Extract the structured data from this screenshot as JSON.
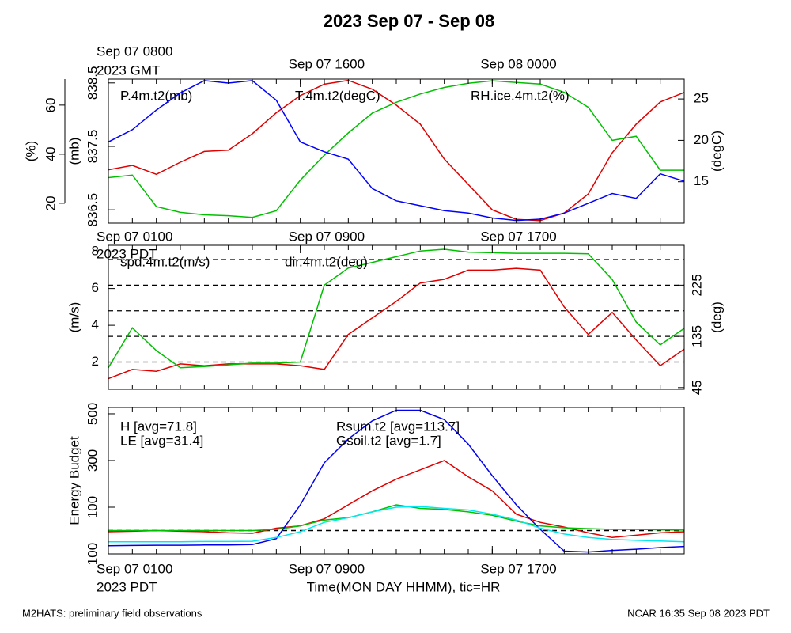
{
  "title": "2023 Sep 07 - Sep 08",
  "footer_left": "M2HATS: preliminary field observations",
  "footer_right": "NCAR 16:35 Sep 08 2023 PDT",
  "chart_data": [
    {
      "type": "line",
      "x": [
        0,
        1,
        2,
        3,
        4,
        5,
        6,
        7,
        8,
        9,
        10,
        11,
        12,
        13,
        14,
        15,
        16,
        17,
        18,
        19,
        20,
        21,
        22,
        23,
        24
      ],
      "xlim": [
        0,
        24
      ],
      "xminorticks": [
        0,
        1,
        2,
        3,
        4,
        5,
        6,
        7,
        8,
        9,
        10,
        11,
        12,
        13,
        14,
        15,
        16,
        17,
        18,
        19,
        20,
        21,
        22,
        23,
        24
      ],
      "x2ticks": [
        {
          "value": 0,
          "label": "Sep 07 0800"
        },
        {
          "value": 8,
          "label": "Sep 07 1600"
        },
        {
          "value": 16,
          "label": "Sep 08 0000"
        }
      ],
      "x2_year": "2023 GMT",
      "ylabel": "(mb)",
      "ylim": [
        836.29,
        838.56
      ],
      "yticks": [
        836.5,
        837.5,
        838.5
      ],
      "y3label": "(%)",
      "y3lim": [
        11.9,
        70.6
      ],
      "y3ticks": [
        20,
        40,
        60
      ],
      "y2label": "(degC)",
      "y2lim": [
        10.0,
        27.4
      ],
      "y2ticks": [
        15,
        20,
        25
      ],
      "series": [
        {
          "name": "P.4m.t2(mb)",
          "color": "#e00000",
          "axis": "y",
          "values": [
            837.13,
            837.2,
            837.06,
            837.25,
            837.42,
            837.44,
            837.7,
            838.03,
            838.3,
            838.48,
            838.54,
            838.4,
            838.15,
            837.85,
            837.3,
            836.9,
            836.5,
            836.35,
            836.33,
            836.45,
            836.75,
            837.4,
            837.85,
            838.2,
            838.35
          ]
        },
        {
          "name": "T.4m.t2(degC)",
          "color": "#00c000",
          "axis": "y2",
          "values": [
            15.5,
            15.8,
            12.0,
            11.3,
            11.0,
            10.9,
            10.7,
            11.5,
            15.2,
            18.2,
            20.9,
            23.3,
            24.6,
            25.6,
            26.4,
            26.9,
            27.2,
            27.0,
            26.8,
            25.8,
            24.0,
            20.0,
            20.5,
            16.4,
            16.4
          ]
        },
        {
          "name": "RH.ice.4m.t2(%)",
          "color": "#0000ff",
          "axis": "y3",
          "values": [
            45,
            50,
            58,
            65,
            70,
            69,
            70,
            62,
            45,
            41,
            38,
            26,
            21,
            19,
            17,
            16,
            14,
            13,
            13.5,
            16,
            20,
            24,
            22,
            32,
            29
          ]
        }
      ]
    },
    {
      "type": "line",
      "x": [
        0,
        1,
        2,
        3,
        4,
        5,
        6,
        7,
        8,
        9,
        10,
        11,
        12,
        13,
        14,
        15,
        16,
        17,
        18,
        19,
        20,
        21,
        22,
        23,
        24
      ],
      "xlim": [
        0,
        24
      ],
      "xminorticks": [
        0,
        1,
        2,
        3,
        4,
        5,
        6,
        7,
        8,
        9,
        10,
        11,
        12,
        13,
        14,
        15,
        16,
        17,
        18,
        19,
        20,
        21,
        22,
        23,
        24
      ],
      "x2ticks": [
        {
          "value": 0,
          "label": "Sep 07 0100"
        },
        {
          "value": 8,
          "label": "Sep 07 0900"
        },
        {
          "value": 16,
          "label": "Sep 07 1700"
        }
      ],
      "x2_year": "2023 PDT",
      "ylabel": "(m/s)",
      "ylim": [
        0.52,
        8.35
      ],
      "yticks": [
        2,
        4,
        6,
        8
      ],
      "y2label": "(deg)",
      "y2lim": [
        42,
        295
      ],
      "y2ticks": [
        45,
        135,
        225
      ],
      "y2grid": [
        90,
        135,
        180,
        225,
        270
      ],
      "series": [
        {
          "name": "spd.4m.t2(m/s)",
          "color": "#e00000",
          "axis": "y",
          "values": [
            1.1,
            1.6,
            1.5,
            1.9,
            1.8,
            1.9,
            1.9,
            1.9,
            1.8,
            1.6,
            3.5,
            4.4,
            5.3,
            6.3,
            6.5,
            7.0,
            7.0,
            7.1,
            7.0,
            5.0,
            3.5,
            4.7,
            3.2,
            1.8,
            2.7
          ]
        },
        {
          "name": "dir.4m.t2(deg)",
          "color": "#00c000",
          "axis": "y2",
          "values": [
            80,
            150,
            110,
            80,
            82,
            85,
            88,
            88,
            90,
            225,
            255,
            265,
            275,
            285,
            288,
            283,
            282,
            281,
            281,
            281,
            280,
            235,
            160,
            120,
            149
          ]
        }
      ]
    },
    {
      "type": "line",
      "x": [
        0,
        1,
        2,
        3,
        4,
        5,
        6,
        7,
        8,
        9,
        10,
        11,
        12,
        13,
        14,
        15,
        16,
        17,
        18,
        19,
        20,
        21,
        22,
        23,
        24
      ],
      "xlim": [
        0,
        24
      ],
      "xminorticks": [
        0,
        1,
        2,
        3,
        4,
        5,
        6,
        7,
        8,
        9,
        10,
        11,
        12,
        13,
        14,
        15,
        16,
        17,
        18,
        19,
        20,
        21,
        22,
        23,
        24
      ],
      "xticks": [
        {
          "value": 0,
          "label": "Sep 07 0100"
        },
        {
          "value": 8,
          "label": "Sep 07 0900"
        },
        {
          "value": 16,
          "label": "Sep 07 1700"
        }
      ],
      "x_year": "2023 PDT",
      "xlabel": "Time(MON DAY HHMM), tic=HR",
      "ylabel": "Energy Budget",
      "ylim": [
        -100,
        527
      ],
      "yticks": [
        {
          "value": -100,
          "label": "100"
        },
        100,
        300,
        500
      ],
      "hline": 0,
      "series": [
        {
          "name": "H [avg=71.8]",
          "color": "#e00000",
          "axis": "y",
          "values": [
            -5,
            -3,
            0,
            -3,
            -5,
            -10,
            -12,
            10,
            20,
            50,
            110,
            170,
            220,
            260,
            300,
            230,
            170,
            70,
            35,
            15,
            -10,
            -30,
            -20,
            -10,
            -5
          ]
        },
        {
          "name": "LE [avg=31.4]",
          "color": "#00c000",
          "axis": "y",
          "values": [
            0,
            0,
            0,
            0,
            0,
            0,
            0,
            5,
            20,
            45,
            55,
            80,
            110,
            95,
            90,
            80,
            65,
            40,
            20,
            12,
            8,
            5,
            5,
            3,
            2
          ]
        },
        {
          "name": "Rsum.t2 [avg=113.7]",
          "color": "#0000ee",
          "axis": "y",
          "values": [
            -65,
            -64,
            -63,
            -63,
            -62,
            -62,
            -60,
            -35,
            110,
            290,
            392,
            470,
            515,
            515,
            475,
            370,
            235,
            110,
            5,
            -88,
            -92,
            -85,
            -80,
            -73,
            -68
          ]
        },
        {
          "name": "Gsoil.t2 [avg=1.7]",
          "color": "#00e8f0",
          "axis": "y",
          "values": [
            -48,
            -48,
            -48,
            -48,
            -47,
            -47,
            -46,
            -30,
            -5,
            35,
            55,
            80,
            100,
            103,
            95,
            88,
            70,
            45,
            10,
            -15,
            -30,
            -38,
            -42,
            -45,
            -48
          ]
        }
      ]
    }
  ]
}
